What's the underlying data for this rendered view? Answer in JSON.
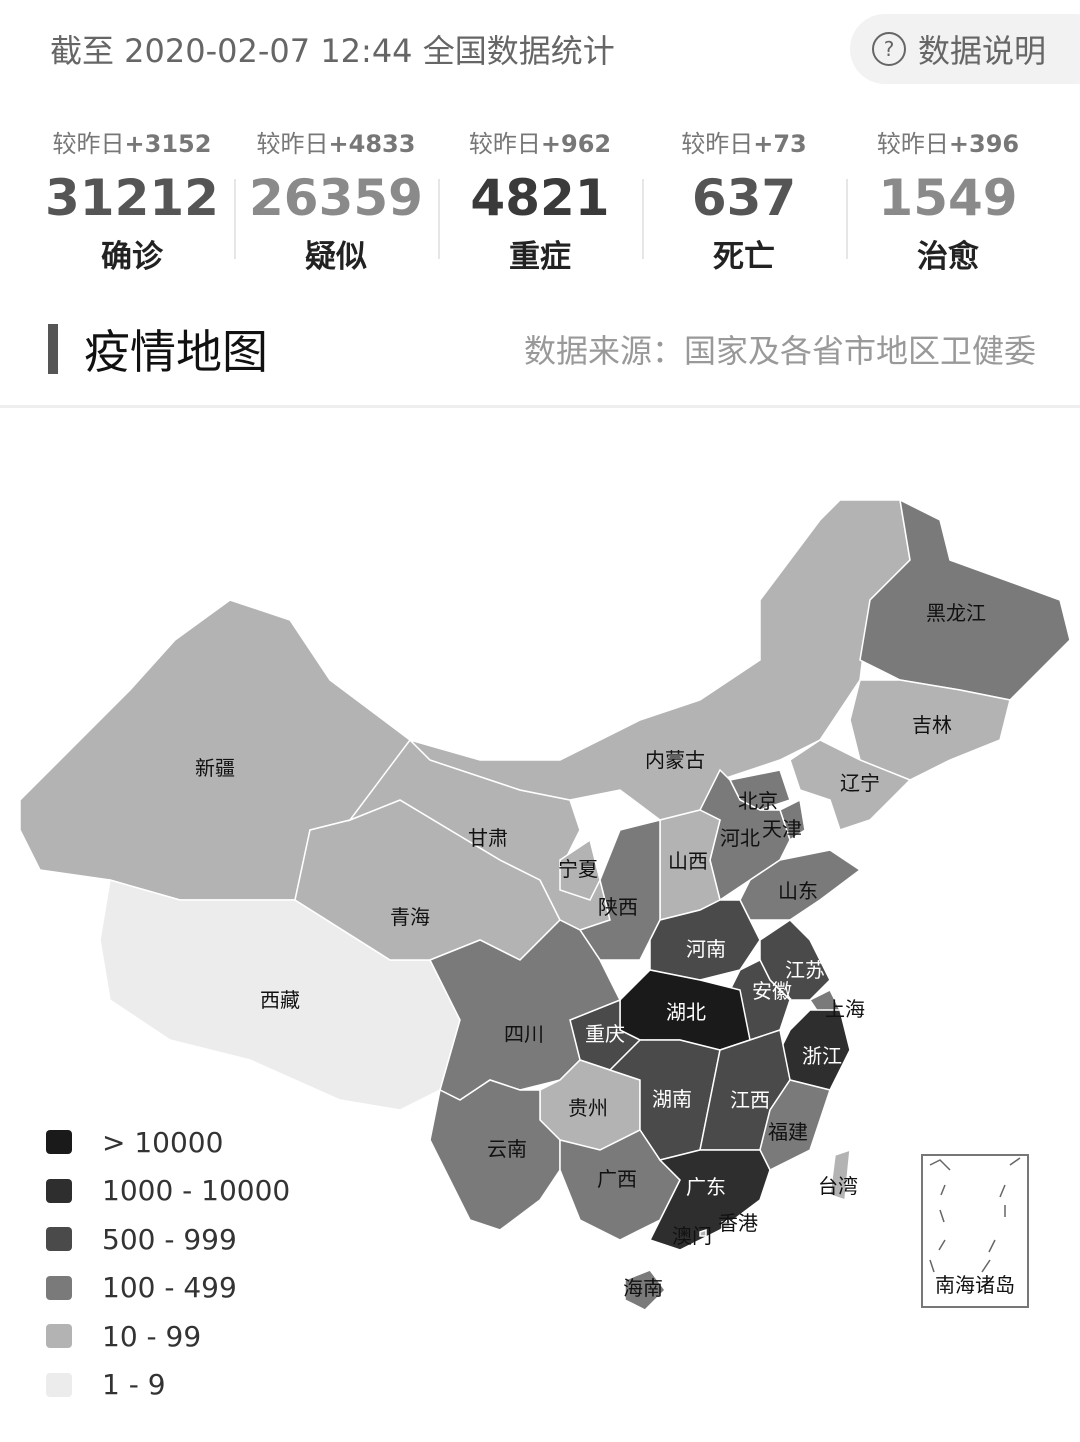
{
  "header": {
    "updated": "截至 2020-02-07 12:44 全国数据统计",
    "explain_label": "数据说明",
    "explain_icon": "question-circle-icon"
  },
  "stats": [
    {
      "delta_prefix": "较昨日",
      "delta": "+3152",
      "value": "31212",
      "label": "确诊",
      "color": "#555555"
    },
    {
      "delta_prefix": "较昨日",
      "delta": "+4833",
      "value": "26359",
      "label": "疑似",
      "color": "#8a8a8a"
    },
    {
      "delta_prefix": "较昨日",
      "delta": "+962",
      "value": "4821",
      "label": "重症",
      "color": "#3a3a3a"
    },
    {
      "delta_prefix": "较昨日",
      "delta": "+73",
      "value": "637",
      "label": "死亡",
      "color": "#555555"
    },
    {
      "delta_prefix": "较昨日",
      "delta": "+396",
      "value": "1549",
      "label": "治愈",
      "color": "#8a8a8a"
    }
  ],
  "section": {
    "title": "疫情地图",
    "source": "数据来源：国家及各省市地区卫健委"
  },
  "legend": [
    {
      "label": "> 10000",
      "color": "#1a1a1a"
    },
    {
      "label": "1000 - 10000",
      "color": "#2e2e2e"
    },
    {
      "label": "500 - 999",
      "color": "#4a4a4a"
    },
    {
      "label": "100 - 499",
      "color": "#7a7a7a"
    },
    {
      "label": "10 - 99",
      "color": "#b3b3b3"
    },
    {
      "label": "1 - 9",
      "color": "#ececec"
    }
  ],
  "provinces": [
    {
      "name": "新疆",
      "level": 4
    },
    {
      "name": "西藏",
      "level": 5
    },
    {
      "name": "青海",
      "level": 4
    },
    {
      "name": "甘肃",
      "level": 4
    },
    {
      "name": "内蒙古",
      "level": 4
    },
    {
      "name": "黑龙江",
      "level": 3
    },
    {
      "name": "吉林",
      "level": 4
    },
    {
      "name": "辽宁",
      "level": 4
    },
    {
      "name": "北京",
      "level": 3
    },
    {
      "name": "天津",
      "level": 3
    },
    {
      "name": "河北",
      "level": 3
    },
    {
      "name": "山西",
      "level": 4
    },
    {
      "name": "山东",
      "level": 3
    },
    {
      "name": "宁夏",
      "level": 4
    },
    {
      "name": "陕西",
      "level": 3
    },
    {
      "name": "河南",
      "level": 2
    },
    {
      "name": "江苏",
      "level": 2
    },
    {
      "name": "安徽",
      "level": 2
    },
    {
      "name": "上海",
      "level": 3
    },
    {
      "name": "浙江",
      "level": 1
    },
    {
      "name": "湖北",
      "level": 0
    },
    {
      "name": "重庆",
      "level": 2
    },
    {
      "name": "四川",
      "level": 3
    },
    {
      "name": "贵州",
      "level": 4
    },
    {
      "name": "湖南",
      "level": 2
    },
    {
      "name": "江西",
      "level": 2
    },
    {
      "name": "福建",
      "level": 3
    },
    {
      "name": "云南",
      "level": 3
    },
    {
      "name": "广西",
      "level": 3
    },
    {
      "name": "广东",
      "level": 1
    },
    {
      "name": "海南",
      "level": 3
    },
    {
      "name": "台湾",
      "level": 4
    },
    {
      "name": "香港",
      "level": 4
    },
    {
      "name": "澳门",
      "level": 4
    }
  ],
  "inset_label": "南海诸岛"
}
